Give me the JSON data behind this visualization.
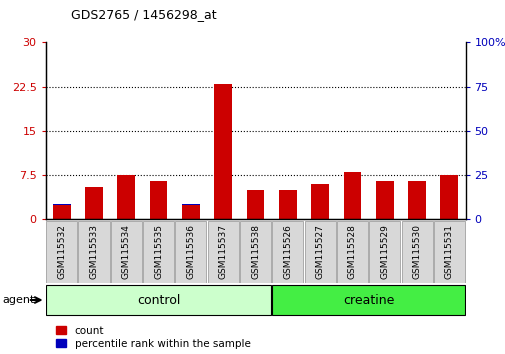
{
  "title": "GDS2765 / 1456298_at",
  "samples": [
    "GSM115532",
    "GSM115533",
    "GSM115534",
    "GSM115535",
    "GSM115536",
    "GSM115537",
    "GSM115538",
    "GSM115526",
    "GSM115527",
    "GSM115528",
    "GSM115529",
    "GSM115530",
    "GSM115531"
  ],
  "count_values": [
    2.5,
    5.5,
    7.5,
    6.5,
    2.5,
    23.0,
    5.0,
    5.0,
    6.0,
    8.0,
    6.5,
    6.5,
    7.5
  ],
  "percentile_values": [
    8.5,
    9.5,
    10.5,
    10.0,
    8.5,
    31.0,
    10.5,
    10.5,
    17.0,
    10.0,
    9.5,
    10.0,
    10.0
  ],
  "left_ylim": [
    0,
    30
  ],
  "right_ylim": [
    0,
    100
  ],
  "left_yticks": [
    0,
    7.5,
    15,
    22.5,
    30
  ],
  "right_yticks": [
    0,
    25,
    50,
    75,
    100
  ],
  "grid_lines": [
    7.5,
    15,
    22.5
  ],
  "bar_color_red": "#cc0000",
  "bar_color_blue": "#0000bb",
  "control_color": "#ccffcc",
  "creatine_color": "#44ee44",
  "agent_label": "agent",
  "control_label": "control",
  "creatine_label": "creatine",
  "legend_count": "count",
  "legend_percentile": "percentile rank within the sample",
  "bar_width": 0.55,
  "tick_label_color_left": "#cc0000",
  "tick_label_color_right": "#0000bb",
  "xlabel_bg": "#d8d8d8",
  "xlabel_border": "#aaaaaa"
}
